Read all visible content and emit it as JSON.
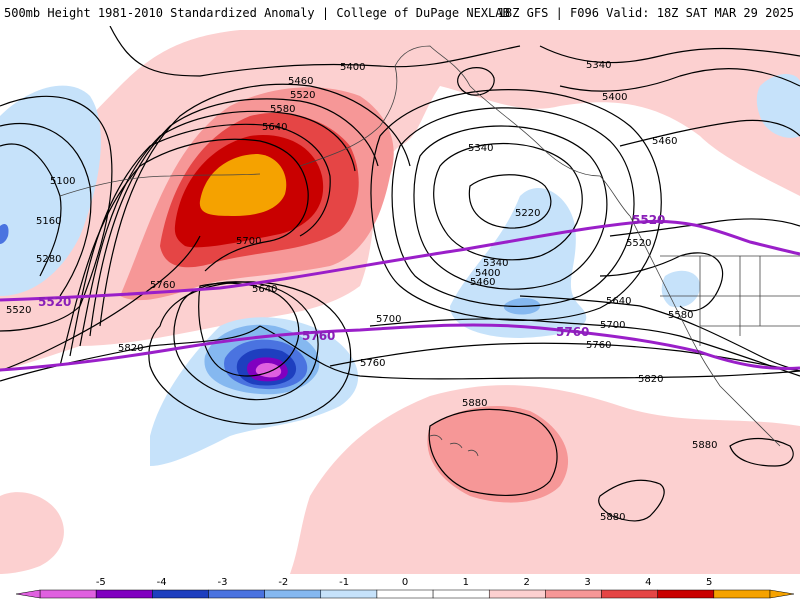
{
  "header": {
    "left_title": "500mb Height 1981-2010 Standardized Anomaly | College of DuPage NEXLAB",
    "right_title": "18Z GFS | F096 Valid: 18Z SAT MAR 29 2025"
  },
  "colors": {
    "anom_pos1": "#fcd0d0",
    "anom_pos2": "#f69797",
    "anom_pos3": "#e54545",
    "anom_pos4": "#c90000",
    "anom_pos5": "#f5a200",
    "anom_neg1": "#c6e2fa",
    "anom_neg2": "#85b8f0",
    "anom_neg3": "#4a73e0",
    "anom_neg4": "#1e3fbf",
    "anom_neg5": "#8000c0",
    "anom_neg6": "#e060e0",
    "contour": "#000000",
    "highlight_contour": "#9a1fc9"
  },
  "contour_labels": [
    {
      "text": "5400"
    },
    {
      "text": "5460"
    },
    {
      "text": "5520"
    },
    {
      "text": "5580"
    },
    {
      "text": "5640"
    },
    {
      "text": "5100"
    },
    {
      "text": "5160"
    },
    {
      "text": "5280"
    },
    {
      "text": "5520"
    },
    {
      "text": "5760"
    },
    {
      "text": "5700"
    },
    {
      "text": "5640"
    },
    {
      "text": "5820"
    },
    {
      "text": "5700"
    },
    {
      "text": "5760"
    },
    {
      "text": "5340"
    },
    {
      "text": "5220"
    },
    {
      "text": "5340"
    },
    {
      "text": "5400"
    },
    {
      "text": "5460"
    },
    {
      "text": "5340"
    },
    {
      "text": "5400"
    },
    {
      "text": "5460"
    },
    {
      "text": "5520"
    },
    {
      "text": "5580"
    },
    {
      "text": "5640"
    },
    {
      "text": "5700"
    },
    {
      "text": "5760"
    },
    {
      "text": "5820"
    },
    {
      "text": "5880"
    },
    {
      "text": "5880"
    },
    {
      "text": "5880"
    }
  ],
  "highlight_labels": [
    {
      "text": "5520"
    },
    {
      "text": "5520"
    },
    {
      "text": "5760"
    },
    {
      "text": "5760"
    }
  ],
  "colorbar": {
    "ticks": [
      "-5",
      "-4",
      "-3",
      "-2",
      "-1",
      "0",
      "1",
      "2",
      "3",
      "4",
      "5"
    ]
  }
}
